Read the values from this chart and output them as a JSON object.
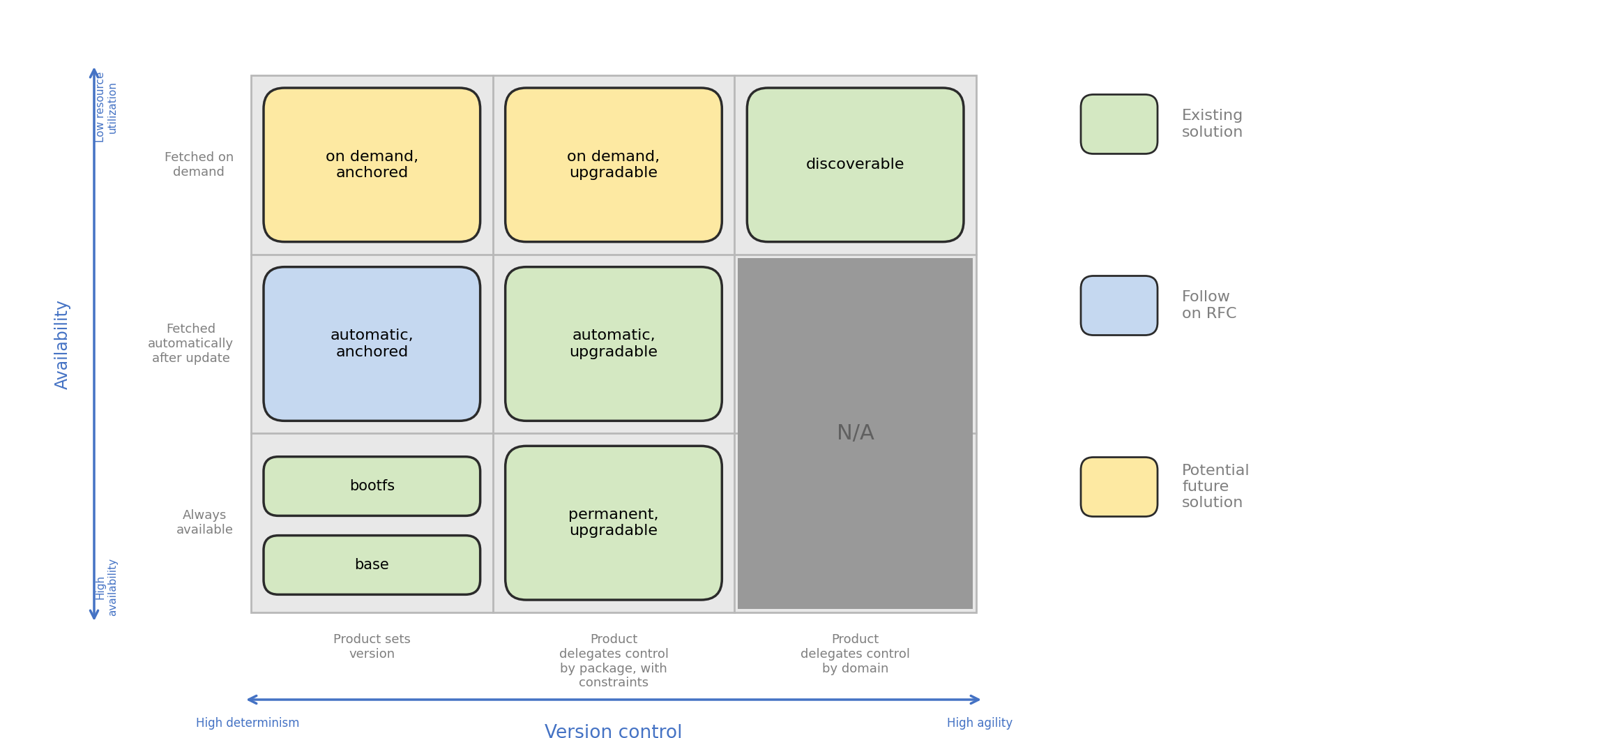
{
  "fig_width": 23.06,
  "fig_height": 10.58,
  "background_color": "#ffffff",
  "grid_bg_color": "#e8e8e8",
  "grid_color": "#b8b8b8",
  "cells": [
    {
      "row": 0,
      "col": 0,
      "text": "on demand,\nanchored",
      "fill": "#fde9a2",
      "border": "#2b2b2b",
      "type": "normal"
    },
    {
      "row": 0,
      "col": 1,
      "text": "on demand,\nupgradable",
      "fill": "#fde9a2",
      "border": "#2b2b2b",
      "type": "normal"
    },
    {
      "row": 0,
      "col": 2,
      "text": "discoverable",
      "fill": "#d4e8c2",
      "border": "#2b2b2b",
      "type": "normal"
    },
    {
      "row": 1,
      "col": 0,
      "text": "automatic,\nanchored",
      "fill": "#c5d8f0",
      "border": "#2b2b2b",
      "type": "normal"
    },
    {
      "row": 1,
      "col": 1,
      "text": "automatic,\nupgradable",
      "fill": "#d4e8c2",
      "border": "#2b2b2b",
      "type": "normal"
    },
    {
      "row": 2,
      "col": 0,
      "text": "bootfs||base",
      "fill": "#d4e8c2",
      "border": "#2b2b2b",
      "type": "double"
    },
    {
      "row": 2,
      "col": 1,
      "text": "permanent,\nupgradable",
      "fill": "#d4e8c2",
      "border": "#2b2b2b",
      "type": "normal"
    }
  ],
  "na_fill": "#999999",
  "na_text": "N/A",
  "na_text_color": "#606060",
  "col_labels": [
    "Product sets\nversion",
    "Product\ndelegates control\nby package, with\nconstraints",
    "Product\ndelegates control\nby domain"
  ],
  "row_labels": [
    "Fetched on\ndemand",
    "Fetched\nautomatically\nafter update",
    "Always\navailable"
  ],
  "legend_items": [
    {
      "label": "Existing\nsolution",
      "fill": "#d4e8c2",
      "border": "#2b2b2b"
    },
    {
      "label": "Follow\non RFC",
      "fill": "#c5d8f0",
      "border": "#2b2b2b"
    },
    {
      "label": "Potential\nfuture\nsolution",
      "fill": "#fde9a2",
      "border": "#2b2b2b"
    }
  ],
  "arrow_color": "#4472c4",
  "axis_label_color": "#4472c4",
  "row_label_color": "#7f7f7f",
  "col_label_color": "#7f7f7f",
  "legend_text_color": "#7f7f7f",
  "y_top_label": "Low resource\nutilization",
  "y_mid_label": "Availability",
  "y_bottom_label": "High\navailability",
  "x_left_label": "High determinism",
  "x_mid_label": "Version control",
  "x_right_label": "High agility"
}
